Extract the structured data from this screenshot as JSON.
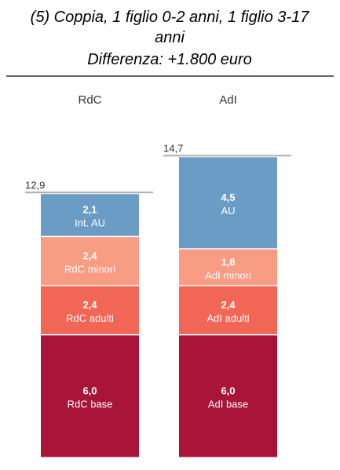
{
  "chart_data": {
    "type": "bar",
    "stacked": true,
    "title_lines": [
      "(5) Coppia, 1 figlio 0-2 anni, 1 figlio 3-17",
      "anni",
      "Differenza: +1.800 euro"
    ],
    "categories": [
      "RdC",
      "AdI"
    ],
    "totals": [
      "12,9",
      "14,7"
    ],
    "total_values": [
      12.9,
      14.7
    ],
    "columns": [
      {
        "name": "RdC",
        "total_label": "12,9",
        "segments": [
          {
            "label": "RdC base",
            "value": 6.0,
            "value_label": "6,0",
            "color": "#A91538"
          },
          {
            "label": "RdC adulti",
            "value": 2.4,
            "value_label": "2,4",
            "color": "#F26656"
          },
          {
            "label": "RdC minori",
            "value": 2.4,
            "value_label": "2,4",
            "color": "#F99C84"
          },
          {
            "label": "Int. AU",
            "value": 2.1,
            "value_label": "2,1",
            "color": "#6A9CC6"
          }
        ]
      },
      {
        "name": "AdI",
        "total_label": "14,7",
        "segments": [
          {
            "label": "AdI base",
            "value": 6.0,
            "value_label": "6,0",
            "color": "#A91538"
          },
          {
            "label": "AdI adulti",
            "value": 2.4,
            "value_label": "2,4",
            "color": "#F26656"
          },
          {
            "label": "AdI minori",
            "value": 1.8,
            "value_label": "1,8",
            "color": "#F99C84"
          },
          {
            "label": "AU",
            "value": 4.5,
            "value_label": "4,5",
            "color": "#6A9CC6"
          }
        ]
      }
    ],
    "colors": {
      "total_line": "#B0B0B0",
      "rule": "#333333"
    }
  }
}
